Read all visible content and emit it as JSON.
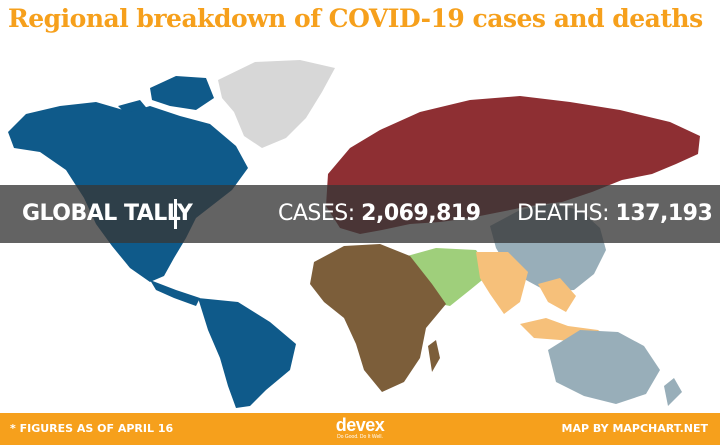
{
  "title": "Regional breakdown of COVID-19 cases and deaths",
  "tally": {
    "label": "GLOBAL TALLY",
    "cases_label": "CASES:",
    "cases_value": "2,069,819",
    "deaths_label": "DEATHS:",
    "deaths_value": "137,193"
  },
  "footer": {
    "note": "* FIGURES AS OF APRIL 16",
    "logo_word": "devex",
    "logo_tagline": "Do Good. Do It Well.",
    "credit": "MAP BY MAPCHART.NET"
  },
  "map": {
    "region_colors": {
      "americas": "#0f5a8a",
      "europe_russia": "#8e2f33",
      "africa": "#7c5e3a",
      "eastern_mediterranean": "#9fcf7b",
      "south_east_asia": "#f6c07a",
      "western_pacific": "#98aeb9",
      "greenland_unassigned": "#d7d7d7"
    }
  }
}
